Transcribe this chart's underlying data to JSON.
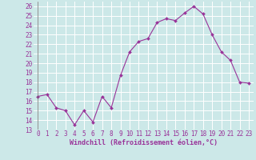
{
  "x": [
    0,
    1,
    2,
    3,
    4,
    5,
    6,
    7,
    8,
    9,
    10,
    11,
    12,
    13,
    14,
    15,
    16,
    17,
    18,
    19,
    20,
    21,
    22,
    23
  ],
  "y": [
    16.5,
    16.7,
    15.3,
    15.0,
    13.5,
    15.0,
    13.8,
    16.5,
    15.3,
    18.7,
    21.2,
    22.3,
    22.6,
    24.3,
    24.7,
    24.5,
    25.3,
    26.0,
    25.2,
    23.0,
    21.2,
    20.3,
    18.0,
    17.9
  ],
  "line_color": "#993399",
  "marker": "D",
  "marker_size": 2.0,
  "line_width": 0.8,
  "bg_color": "#cce8e8",
  "grid_color": "#ffffff",
  "xlabel": "Windchill (Refroidissement éolien,°C)",
  "xlabel_color": "#993399",
  "xlabel_fontsize": 6.0,
  "tick_color": "#993399",
  "tick_fontsize": 5.5,
  "ylim": [
    13,
    26.5
  ],
  "xlim": [
    -0.5,
    23.5
  ],
  "yticks": [
    13,
    14,
    15,
    16,
    17,
    18,
    19,
    20,
    21,
    22,
    23,
    24,
    25,
    26
  ],
  "xticks": [
    0,
    1,
    2,
    3,
    4,
    5,
    6,
    7,
    8,
    9,
    10,
    11,
    12,
    13,
    14,
    15,
    16,
    17,
    18,
    19,
    20,
    21,
    22,
    23
  ]
}
